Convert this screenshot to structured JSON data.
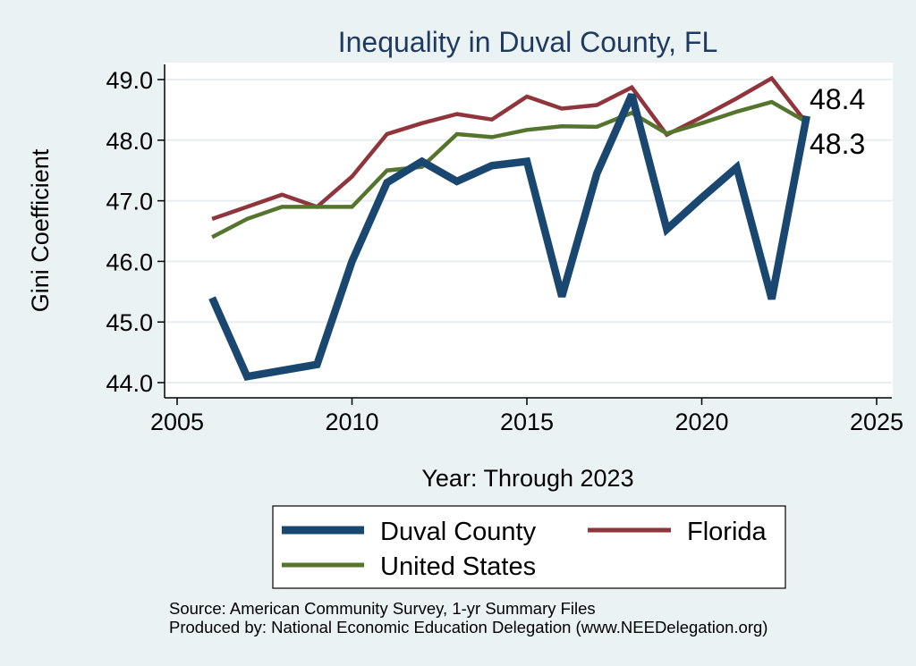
{
  "chart_data": {
    "type": "line",
    "title": "Inequality in Duval County, FL",
    "xlabel": "Year: Through 2023",
    "ylabel": "Gini Coefficient",
    "xlim": [
      2005,
      2025
    ],
    "ylim": [
      44.0,
      49.0
    ],
    "x_ticks": [
      "2005",
      "2010",
      "2015",
      "2020",
      "2025"
    ],
    "y_ticks": [
      "44.0",
      "45.0",
      "46.0",
      "47.0",
      "48.0",
      "49.0"
    ],
    "x": [
      2006,
      2007,
      2008,
      2009,
      2010,
      2011,
      2012,
      2013,
      2014,
      2015,
      2016,
      2017,
      2018,
      2019,
      2020,
      2021,
      2022,
      2023
    ],
    "series": [
      {
        "name": "Duval County",
        "color": "#1a476f",
        "values": [
          45.4,
          44.1,
          44.2,
          44.3,
          46.0,
          47.3,
          47.65,
          47.32,
          47.58,
          47.65,
          45.42,
          47.45,
          48.75,
          46.53,
          47.05,
          47.55,
          45.38,
          48.4
        ]
      },
      {
        "name": "Florida",
        "color": "#90353b",
        "values": [
          46.7,
          46.9,
          47.1,
          46.9,
          47.4,
          48.1,
          48.28,
          48.43,
          48.34,
          48.72,
          48.52,
          48.58,
          48.87,
          48.09,
          48.38,
          48.69,
          49.02,
          48.28
        ]
      },
      {
        "name": "United States",
        "color": "#55752f",
        "values": [
          46.4,
          46.7,
          46.9,
          46.9,
          46.9,
          47.5,
          47.56,
          48.1,
          48.05,
          48.17,
          48.23,
          48.22,
          48.45,
          48.11,
          48.28,
          48.47,
          48.63,
          48.3
        ]
      }
    ],
    "end_labels": [
      "48.4",
      "48.3"
    ],
    "legend": {
      "position": "bottom",
      "items": [
        "Duval County",
        "Florida",
        "United States"
      ]
    },
    "notes": [
      "Source: American Community Survey, 1-yr Summary Files",
      "Produced by: National Economic Education Delegation (www.NEEDelegation.org)"
    ]
  }
}
